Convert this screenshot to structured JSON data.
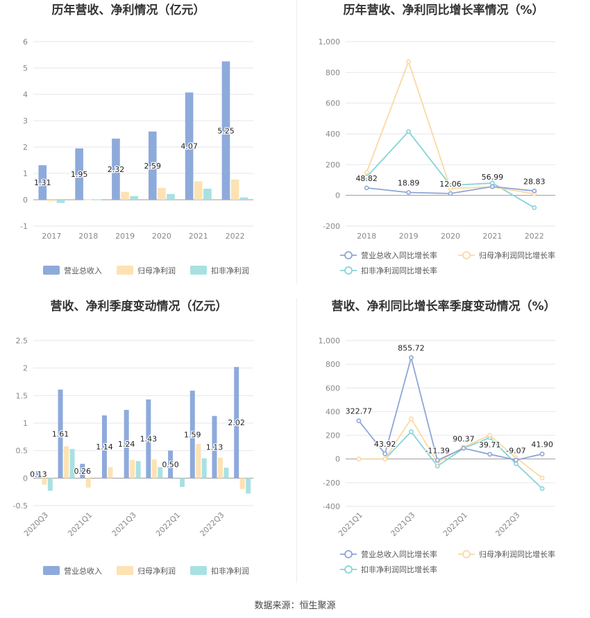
{
  "colors": {
    "revenue": "#8eaadb",
    "net_profit": "#fde2b3",
    "deducted_profit": "#a8e1e2",
    "revenue_line": "#8ea6d6",
    "net_line": "#fbd9a2",
    "deducted_line": "#86d3d7",
    "axis_text": "#888888",
    "grid": "#e6e6ee",
    "title": "#333333"
  },
  "source": "数据来源：恒生聚源",
  "chart_data": [
    {
      "type": "bar",
      "title": "历年营收、净利情况（亿元）",
      "categories": [
        "2017",
        "2018",
        "2019",
        "2020",
        "2021",
        "2022"
      ],
      "yticks": [
        "6",
        "5",
        "4",
        "3",
        "2",
        "1",
        "0",
        "-1"
      ],
      "ylim": [
        -1,
        6
      ],
      "series": [
        {
          "name": "营业总收入",
          "values": [
            1.31,
            1.95,
            2.32,
            2.59,
            4.07,
            5.25
          ],
          "labels": [
            "1.31",
            "1.95",
            "2.32",
            "2.59",
            "4.07",
            "5.25"
          ]
        },
        {
          "name": "归母净利润",
          "values": [
            -0.05,
            0.01,
            0.3,
            0.45,
            0.7,
            0.77
          ]
        },
        {
          "name": "扣非净利润",
          "values": [
            -0.12,
            0.01,
            0.14,
            0.22,
            0.42,
            0.09
          ]
        }
      ],
      "legend": "bottom"
    },
    {
      "type": "line",
      "title": "历年营收、净利同比增长率情况（%）",
      "categories": [
        "2018",
        "2019",
        "2020",
        "2021",
        "2022"
      ],
      "yticks": [
        "1,000",
        "800",
        "600",
        "400",
        "200",
        "0",
        "-200"
      ],
      "ylim": [
        -200,
        1000
      ],
      "series": [
        {
          "name": "营业总收入同比增长率",
          "values": [
            48.82,
            18.89,
            12.06,
            56.99,
            28.83
          ],
          "labels": [
            "48.82",
            "18.89",
            "12.06",
            "56.99",
            "28.83"
          ]
        },
        {
          "name": "归母净利润同比增长率",
          "values": [
            150,
            870,
            45,
            55,
            10
          ]
        },
        {
          "name": "扣非净利润同比增长率",
          "values": [
            120,
            415,
            65,
            80,
            -80
          ]
        }
      ],
      "legend": "bottom"
    },
    {
      "type": "bar",
      "title": "营收、净利季度变动情况（亿元）",
      "categories": [
        "2020Q3",
        "2020Q4",
        "2021Q1",
        "2021Q2",
        "2021Q3",
        "2021Q4",
        "2022Q1",
        "2022Q2",
        "2022Q3",
        "2022Q4"
      ],
      "xticks": [
        "2020Q3",
        "2021Q1",
        "2021Q3",
        "2022Q1",
        "2022Q3"
      ],
      "yticks": [
        "2.5",
        "2",
        "1.5",
        "1",
        "0.5",
        "0",
        "-0.5"
      ],
      "ylim": [
        -0.5,
        2.5
      ],
      "series": [
        {
          "name": "营业总收入",
          "values": [
            0.13,
            1.61,
            0.26,
            1.14,
            1.24,
            1.43,
            0.5,
            1.59,
            1.13,
            2.02
          ],
          "labels": [
            "0.13",
            "1.61",
            "0.26",
            "1.14",
            "1.24",
            "1.43",
            "0.50",
            "1.59",
            "1.13",
            "2.02"
          ]
        },
        {
          "name": "归母净利润",
          "values": [
            -0.12,
            0.58,
            -0.17,
            0.2,
            0.33,
            0.34,
            0.0,
            0.62,
            0.37,
            -0.2
          ]
        },
        {
          "name": "扣非净利润",
          "values": [
            -0.23,
            0.53,
            0.0,
            0.0,
            0.31,
            0.2,
            -0.16,
            0.36,
            0.19,
            -0.28
          ]
        }
      ],
      "legend": "bottom"
    },
    {
      "type": "line",
      "title": "营收、净利同比增长率季度变动情况（%）",
      "categories": [
        "2021Q1",
        "2021Q2",
        "2021Q3",
        "2021Q4",
        "2022Q1",
        "2022Q2",
        "2022Q3",
        "2022Q4"
      ],
      "xticks": [
        "2021Q1",
        "2021Q3",
        "2022Q1",
        "2022Q3"
      ],
      "yticks": [
        "1,000",
        "800",
        "600",
        "400",
        "200",
        "0",
        "-200",
        "-400"
      ],
      "ylim": [
        -400,
        1000
      ],
      "series": [
        {
          "name": "营业总收入同比增长率",
          "values": [
            322.77,
            43.92,
            855.72,
            -11.39,
            90.37,
            39.71,
            -9.07,
            41.9
          ],
          "labels": [
            "322.77",
            "43.92",
            "855.72",
            "-11.39",
            "90.37",
            "39.71",
            "-9.07",
            "41.90"
          ]
        },
        {
          "name": "归母净利润同比增长率",
          "values": [
            0,
            0,
            340,
            -30,
            100,
            200,
            10,
            -160
          ]
        },
        {
          "name": "扣非净利润同比增长率",
          "values": [
            0,
            0,
            230,
            -60,
            90,
            180,
            -40,
            -250
          ]
        }
      ],
      "legend": "bottom"
    }
  ]
}
